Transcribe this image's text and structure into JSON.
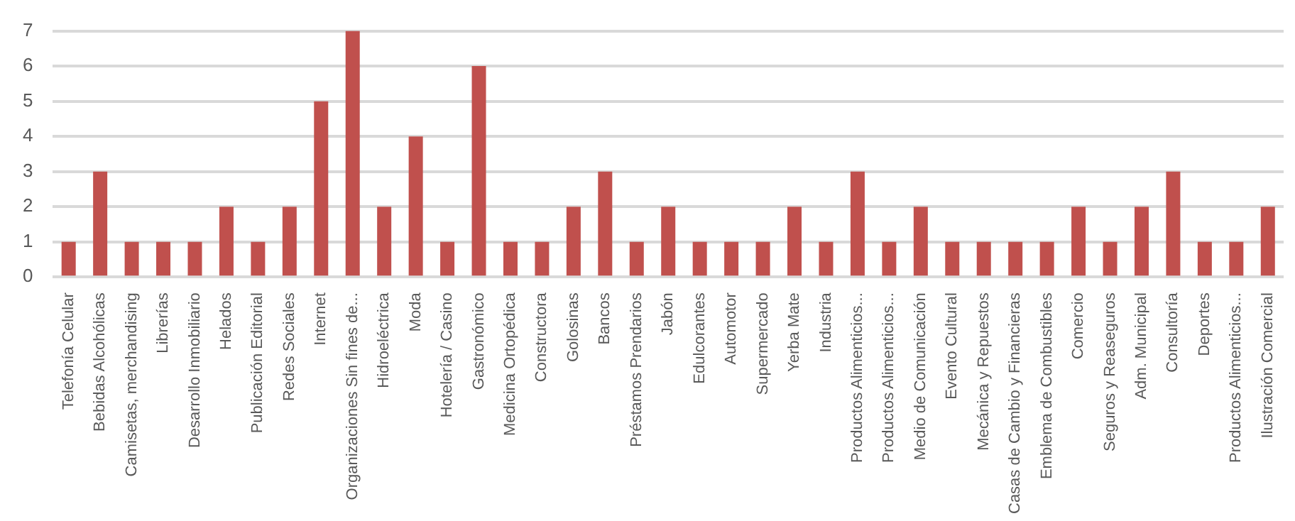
{
  "chart_data": {
    "type": "bar",
    "categories": [
      "Telefonía Celular",
      "Bebidas Alcohólicas",
      "Camisetas, merchandising",
      "Librerías",
      "Desarrollo Inmobiliario",
      "Helados",
      "Publicación Editorial",
      "Redes Sociales",
      "Internet",
      "Organizaciones Sin fines de...",
      "Hidroeléctrica",
      "Moda",
      "Hotelería / Casino",
      "Gastronómico",
      "Medicina Ortopédica",
      "Constructora",
      "Golosinas",
      "Bancos",
      "Préstamos Prendarios",
      "Jabón",
      "Edulcorantes",
      "Automotor",
      "Supermercado",
      "Yerba Mate",
      "Industria",
      "Productos Alimenticios...",
      "Productos Alimenticios...",
      "Medio de Comunicación",
      "Evento Cultural",
      "Mecánica y Repuestos",
      "Casas de Cambio y Financieras",
      "Emblema de Combustibles",
      "Comercio",
      "Seguros y Reaseguros",
      "Adm. Municipal",
      "Consultoría",
      "Deportes",
      "Productos Alimenticios...",
      "Ilustración Comercial"
    ],
    "values": [
      1,
      3,
      1,
      1,
      1,
      2,
      1,
      2,
      5,
      7,
      2,
      4,
      1,
      6,
      1,
      1,
      2,
      3,
      1,
      2,
      1,
      1,
      1,
      2,
      1,
      3,
      1,
      2,
      1,
      1,
      1,
      1,
      2,
      1,
      2,
      3,
      1,
      1,
      2
    ],
    "color": "#c0504d",
    "ylim": [
      0,
      7
    ],
    "yticks": [
      0,
      1,
      2,
      3,
      4,
      5,
      6,
      7
    ],
    "grid": "y",
    "legend": false
  }
}
